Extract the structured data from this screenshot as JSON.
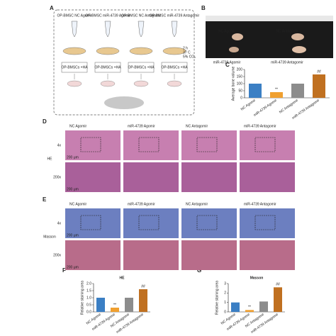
{
  "panel_letters": [
    "A",
    "B",
    "C",
    "D",
    "E",
    "F",
    "G"
  ],
  "panel_a": {
    "groups": [
      "OP-BMSC NC Agomir",
      "OP-BMSC miR-4739 Agomir",
      "OP-BMSC NC Antagomir",
      "OP-BMSC miR-4739 Antagomir"
    ],
    "scaffold": "OP-BMSCs +HA",
    "conditions": [
      "2 h",
      "37 C",
      "5% CO₂"
    ]
  },
  "panel_b": {
    "labels": [
      "NC Agomir",
      "NC Antagomir",
      "miR-4739 Agomir",
      "miR-4739 Antagomir"
    ]
  },
  "histology": [
    {
      "row_label": "HE",
      "columns": [
        "NC Agomir",
        "miR-4739 Agomir",
        "NC Antagomir",
        "miR-4739 Antagomir"
      ],
      "magnifications": [
        "4x",
        "200x"
      ],
      "scale_bars": [
        "200 μm",
        "200 μm"
      ]
    },
    {
      "row_label": "Masson",
      "columns": [
        "NC Agomir",
        "miR-4739 Agomir",
        "NC Antagomir",
        "miR-4739 Antagomir"
      ],
      "magnifications": [
        "4x",
        "200x"
      ],
      "scale_bars": [
        "200 μm",
        "200 μm"
      ]
    }
  ],
  "chart_data": [
    {
      "type": "bar",
      "y_label": "Average bone volume",
      "categories": [
        "NC Agomir",
        "miR-4739 Agomir",
        "NC Antagomir",
        "miR-4739 Antagomir"
      ],
      "values": [
        100,
        40,
        100,
        165
      ],
      "colors": [
        "#3b7fc4",
        "#f0a030",
        "#8c8c8c",
        "#c07020"
      ],
      "annotations": [
        {
          "category": "miR-4739 Agomir",
          "text": "**"
        },
        {
          "category": "miR-4739 Antagomir",
          "text": "##"
        }
      ],
      "ylim": [
        0,
        200
      ],
      "yticks": [
        0,
        50,
        100,
        150,
        200
      ]
    },
    {
      "type": "bar",
      "title": "HE",
      "y_label": "Relative staining area",
      "categories": [
        "NC Agomir",
        "miR-4739 Agomir",
        "NC Antagomir",
        "miR-4739 Antagomir"
      ],
      "values": [
        1.0,
        0.3,
        1.0,
        1.6
      ],
      "colors": [
        "#3b7fc4",
        "#f0a030",
        "#8c8c8c",
        "#c07020"
      ],
      "annotations": [
        {
          "category": "miR-4739 Agomir",
          "text": "**"
        },
        {
          "category": "miR-4739 Antagomir",
          "text": "##"
        }
      ],
      "ylim": [
        0,
        2
      ],
      "yticks": [
        {
          "value": 0,
          "label": "0.0"
        },
        0.5,
        {
          "value": 1,
          "label": "1.0"
        },
        1.5,
        {
          "value": 2,
          "label": "2.0"
        }
      ]
    },
    {
      "type": "bar",
      "title": "Masson",
      "y_label": "Relative staining area",
      "categories": [
        "NC Agomir",
        "miR-4739 Agomir",
        "NC Antagomir",
        "miR-4739 Antagomir"
      ],
      "values": [
        1.0,
        0.2,
        1.1,
        2.6
      ],
      "colors": [
        "#3b7fc4",
        "#f0a030",
        "#8c8c8c",
        "#c07020"
      ],
      "annotations": [
        {
          "category": "miR-4739 Agomir",
          "text": "**"
        },
        {
          "category": "miR-4739 Antagomir",
          "text": "##"
        }
      ],
      "ylim": [
        0,
        3
      ],
      "yticks": [
        0,
        1,
        2,
        3
      ]
    }
  ]
}
